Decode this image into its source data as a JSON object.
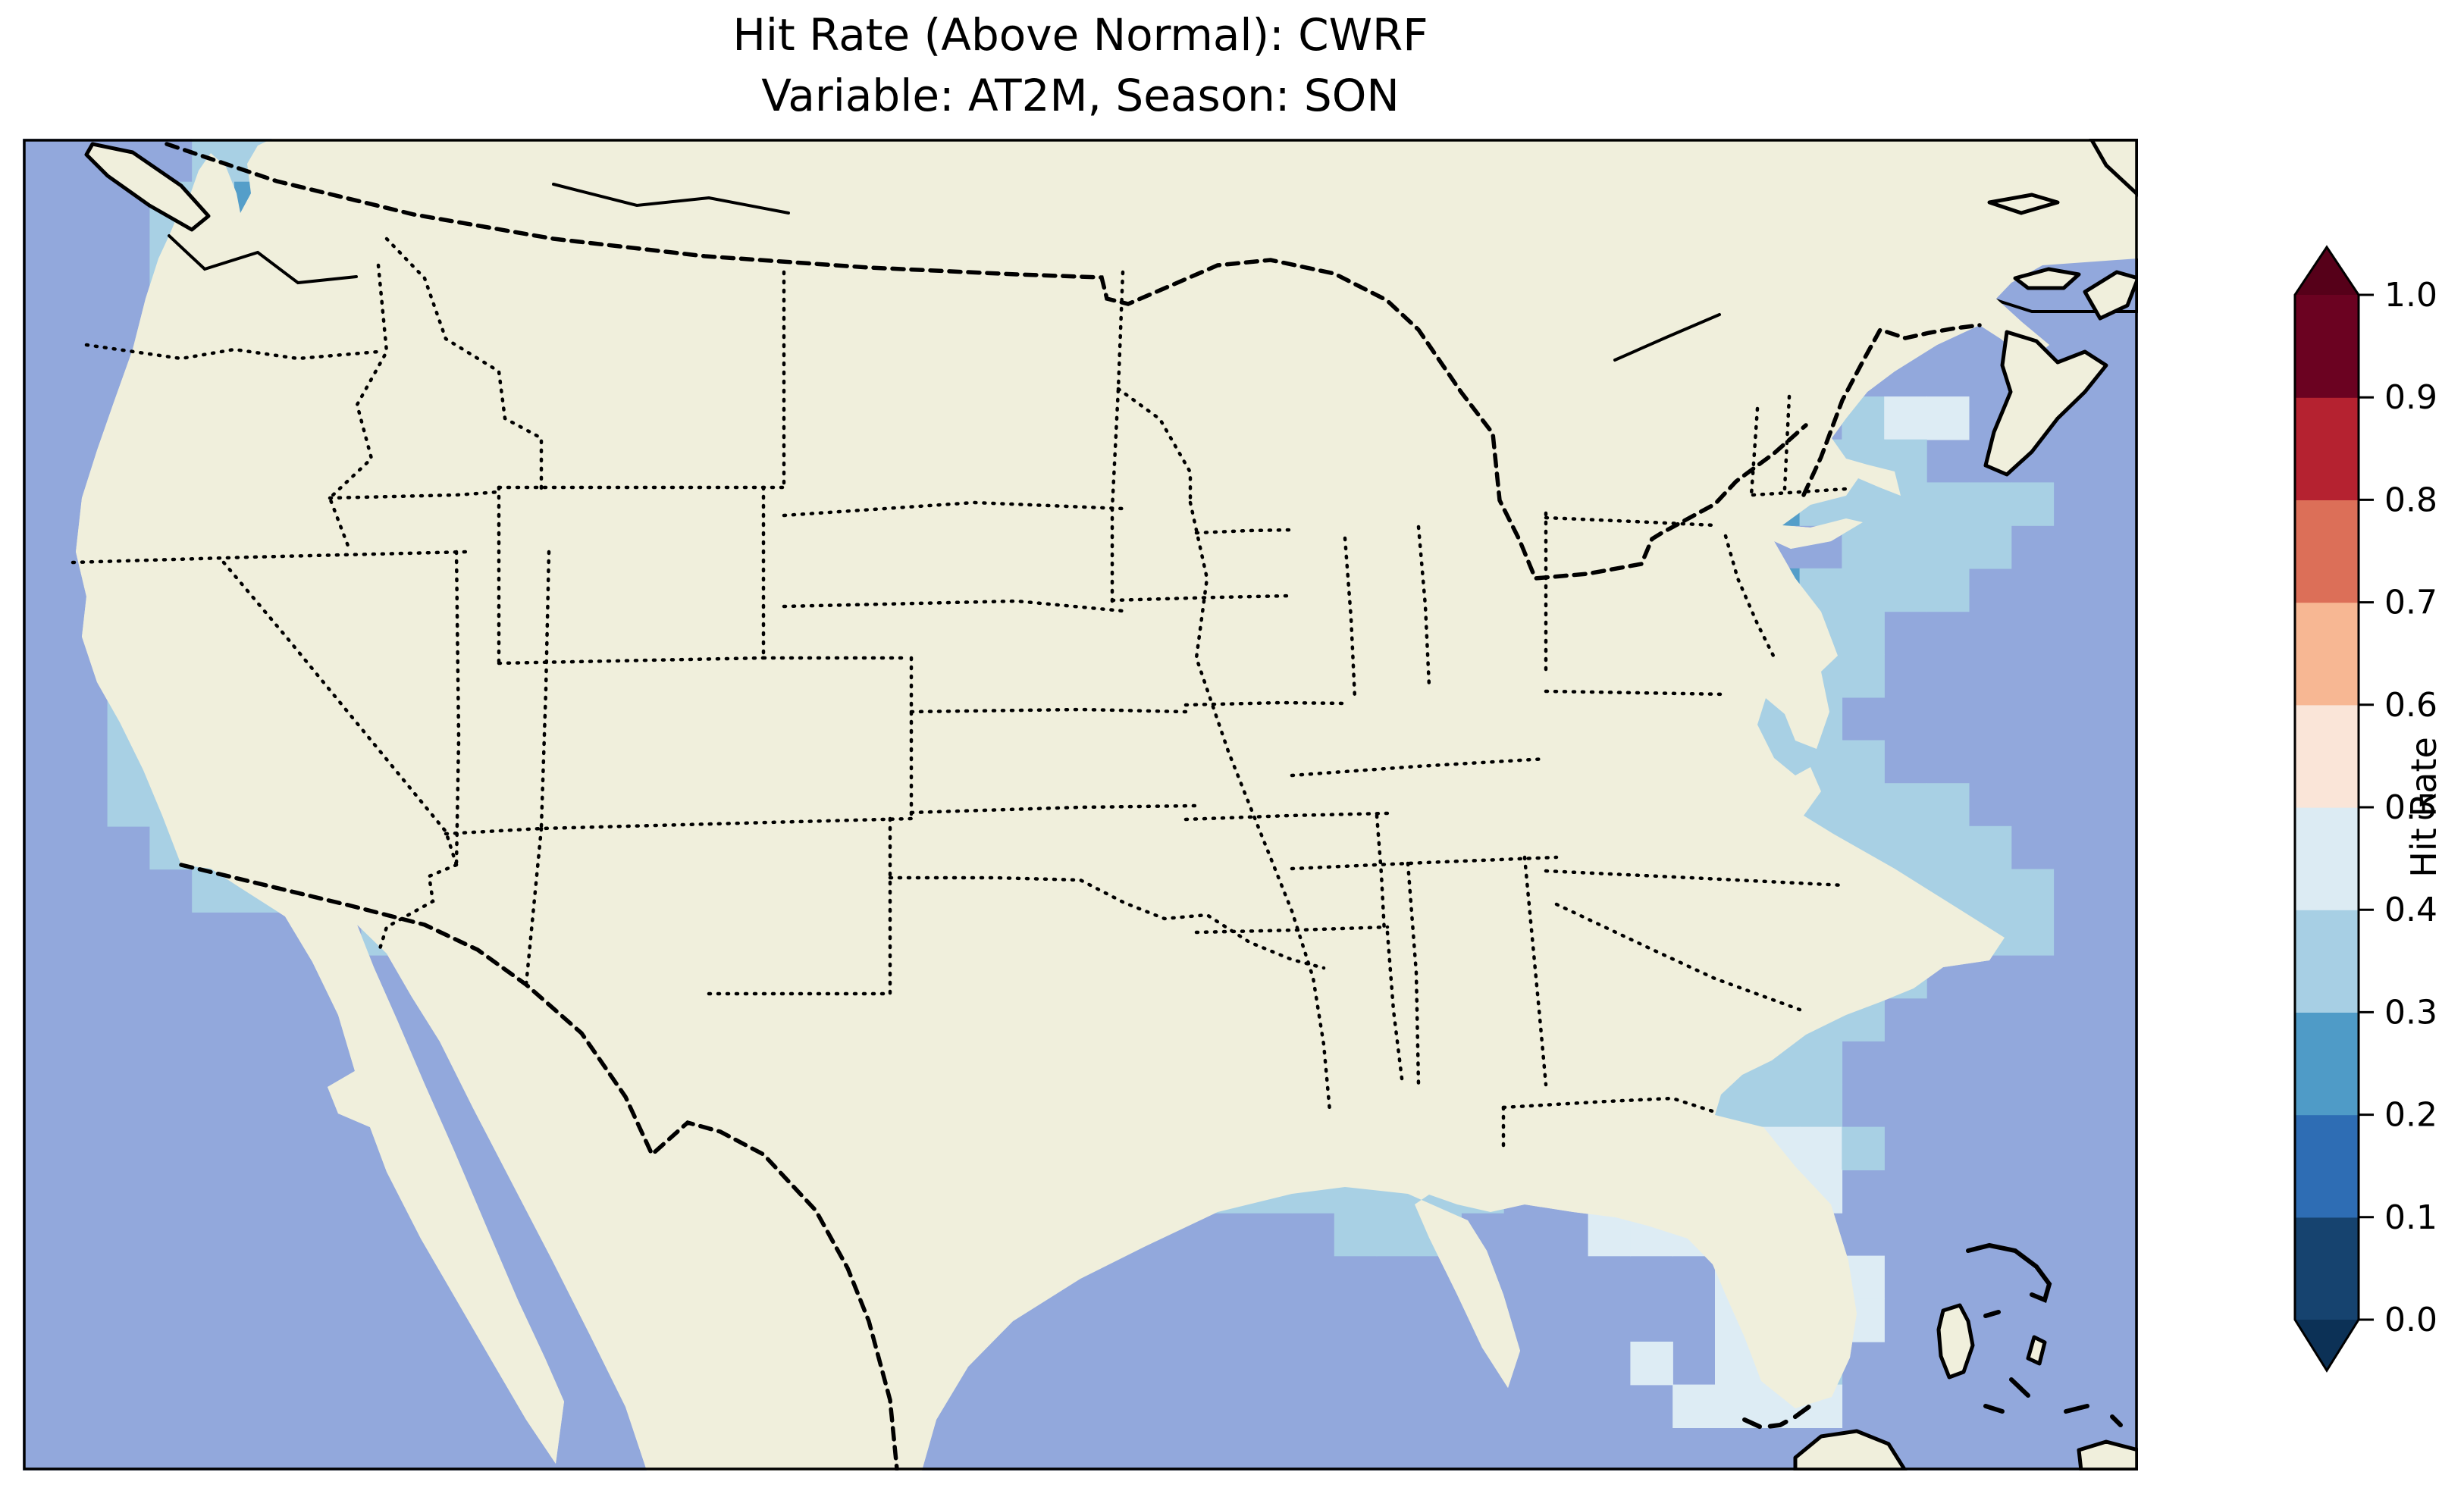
{
  "title": {
    "line1": "Hit Rate (Above Normal): CWRF",
    "line2": "Variable: AT2M, Season: SON"
  },
  "colorbar": {
    "label": "Hit Rate",
    "tick_labels": [
      "0.0",
      "0.1",
      "0.2",
      "0.3",
      "0.4",
      "0.5",
      "0.6",
      "0.7",
      "0.8",
      "0.9",
      "1.0"
    ],
    "bin_edges": [
      0.0,
      0.1,
      0.2,
      0.3,
      0.4,
      0.5,
      0.6,
      0.7,
      0.8,
      0.9,
      1.0
    ],
    "bin_colors": [
      "#16436f",
      "#2e6db4",
      "#4f9bc7",
      "#a7cfe4",
      "#dcebf3",
      "#fae5d8",
      "#f7b793",
      "#dc6f58",
      "#b52230",
      "#6b0221"
    ],
    "under_color": "#0c3156",
    "over_color": "#560019"
  },
  "map": {
    "ocean_color": "#92a8dc",
    "land_color": "#f0efdc",
    "lake_color": "#92a8dc",
    "coastline_color": "#000000",
    "cell_colors": {
      "2": "#549ec9",
      "3": "#a8d0e4",
      "4": "#ddecf4"
    }
  },
  "chart_data": {
    "type": "heatmap",
    "metric": "Hit Rate (Above Normal)",
    "model": "CWRF",
    "variable": "AT2M",
    "season": "SON",
    "region": "Contiguous United States",
    "colormap": "RdBu_r, 10 discrete bins 0.0-1.0, extend both",
    "value_range": [
      0.0,
      1.0
    ],
    "grid_legend": {
      ".": "no data",
      "2": "hit rate 0.2-0.3",
      "3": "hit rate 0.3-0.4",
      "4": "hit rate 0.4-0.5"
    },
    "grid_cols": 50,
    "grid_rows_count": 31,
    "grid_rows": [
      "....33223..........................................",
      "...33222233........................................",
      "...33222333333223333..............................",
      "...33222333333223333334433333.....................",
      "...33222333333222222334444433.....................",
      "...33222333333222222233344433.....................",
      "...3322233333322222233334222 2.............344....",
      "...332223333333222233222222222223.........333....",
      "...33222233333332222332222222222.22....222333333....",
      "..333222233332233222233222222223.222..32...3333.....",
      "..3332222333222332222332222222 3.2223..2223333......",
      "..33222223322223322222333332220.222222223333.......",
      "..332222232222333222233333222 3.222233333333.......",
      "..3322223322223332222333322233.333233333333.......",
      "..3333223322223333222333333222 2333333333333.......",
      "..33332233333333333333222222233322333333333333......",
      "...333333332223333332222222333223333333 3333333....",
      "....333333332233333332222233322333333333 3333333...",
      "........3433333333332222233322333333333333333333...",
      "..........33333333333222233333333333333333333.....",
      "..............333333333332222233333333333333.......",
      "..............33333333332222333333333333333........",
      "..............3333333..22233333333333333333.......",
      "...............333333...223333333333333 4443.......",
      "................3333.......33333333...34444.......",
      ".................333...........333...44444......",
      ".................333....................4444......",
      ".................3333...................4444......",
      "..................333.................4.443......",
      "..................33...................4444.......",
      "..................33.............................."
    ]
  }
}
